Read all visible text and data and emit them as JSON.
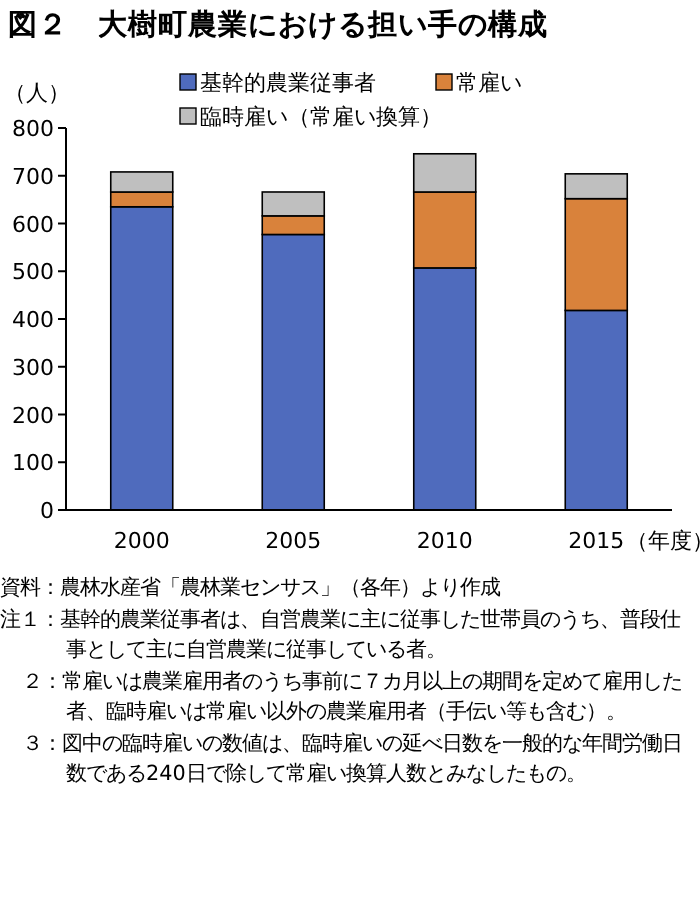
{
  "chart_data": {
    "type": "bar",
    "title": "図２　大樹町農業における担い手の構成",
    "ylabel": "（人）",
    "xlabel": "（年度）",
    "categories": [
      "2000",
      "2005",
      "2010",
      "2015"
    ],
    "stacked": true,
    "series": [
      {
        "name": "基幹的農業従事者",
        "color": "#4f6bbd",
        "values": [
          635,
          577,
          507,
          418
        ]
      },
      {
        "name": "常雇い",
        "color": "#d9823b",
        "values": [
          31,
          39,
          159,
          234
        ]
      },
      {
        "name": "臨時雇い（常雇い換算）",
        "color": "#bfbfbf",
        "values": [
          42,
          50,
          80,
          52
        ]
      }
    ],
    "ylim": [
      0,
      800
    ],
    "yticks": [
      0,
      100,
      200,
      300,
      400,
      500,
      600,
      700,
      800
    ],
    "legend": "top",
    "grid": false,
    "annotations": [
      "資料：農林水産省「農林業センサス」（各年）より作成",
      "注１：基幹的農業従事者は、自営農業に主に従事した世帯員のうち、普段仕事として主に自営農業に従事している者。",
      "２：常雇いは農業雇用者のうち事前に７カ月以上の期間を定めて雇用した者、臨時雇いは常雇い以外の農業雇用者（手伝い等も含む）。",
      "３：図中の臨時雇いの数値は、臨時雇いの延べ日数を一般的な年間労働日数である240日で除して常雇い換算人数とみなしたもの。"
    ]
  }
}
